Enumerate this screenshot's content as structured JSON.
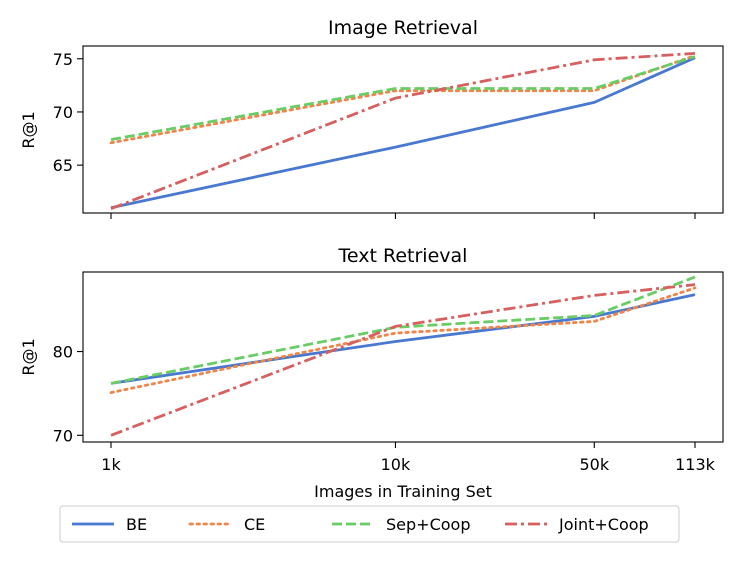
{
  "chart_data": [
    {
      "type": "line",
      "title": "Image Retrieval",
      "ylabel": "R@1",
      "xlabel": "",
      "x": [
        1,
        10,
        50,
        113
      ],
      "x_tick_labels": [
        "1k",
        "10k",
        "50k",
        "113k"
      ],
      "x_scale": "log",
      "ylim": [
        60.5,
        76.2
      ],
      "yticks": [
        65,
        70,
        75
      ],
      "grid": false,
      "series": [
        {
          "name": "BE",
          "values": [
            61.0,
            66.7,
            70.9,
            75.1
          ]
        },
        {
          "name": "CE",
          "values": [
            67.1,
            72.0,
            72.0,
            75.3
          ]
        },
        {
          "name": "Sep+Coop",
          "values": [
            67.4,
            72.2,
            72.2,
            75.2
          ]
        },
        {
          "name": "Joint+Coop",
          "values": [
            60.9,
            71.3,
            74.9,
            75.5
          ]
        }
      ]
    },
    {
      "type": "line",
      "title": "Text Retrieval",
      "ylabel": "R@1",
      "xlabel": "Images in Training Set",
      "x": [
        1,
        10,
        50,
        113
      ],
      "x_tick_labels": [
        "1k",
        "10k",
        "50k",
        "113k"
      ],
      "x_scale": "log",
      "ylim": [
        69.2,
        89.5
      ],
      "yticks": [
        70,
        80
      ],
      "grid": false,
      "series": [
        {
          "name": "BE",
          "values": [
            76.2,
            81.2,
            84.2,
            86.8
          ]
        },
        {
          "name": "CE",
          "values": [
            75.1,
            82.2,
            83.6,
            87.6
          ]
        },
        {
          "name": "Sep+Coop",
          "values": [
            76.2,
            82.9,
            84.3,
            88.9
          ]
        },
        {
          "name": "Joint+Coop",
          "values": [
            70.0,
            83.0,
            86.7,
            88.0
          ]
        }
      ]
    }
  ],
  "legend": {
    "placement": "bottom-center",
    "entries": [
      "BE",
      "CE",
      "Sep+Coop",
      "Joint+Coop"
    ]
  },
  "colors": {
    "BE": "#4878d0",
    "CE": "#ee854a",
    "Sep+Coop": "#6acc64",
    "Joint+Coop": "#d65f5f"
  },
  "line_styles": {
    "BE": "solid",
    "CE": "dotted",
    "Sep+Coop": "dashed",
    "Joint+Coop": "dash-dot"
  }
}
